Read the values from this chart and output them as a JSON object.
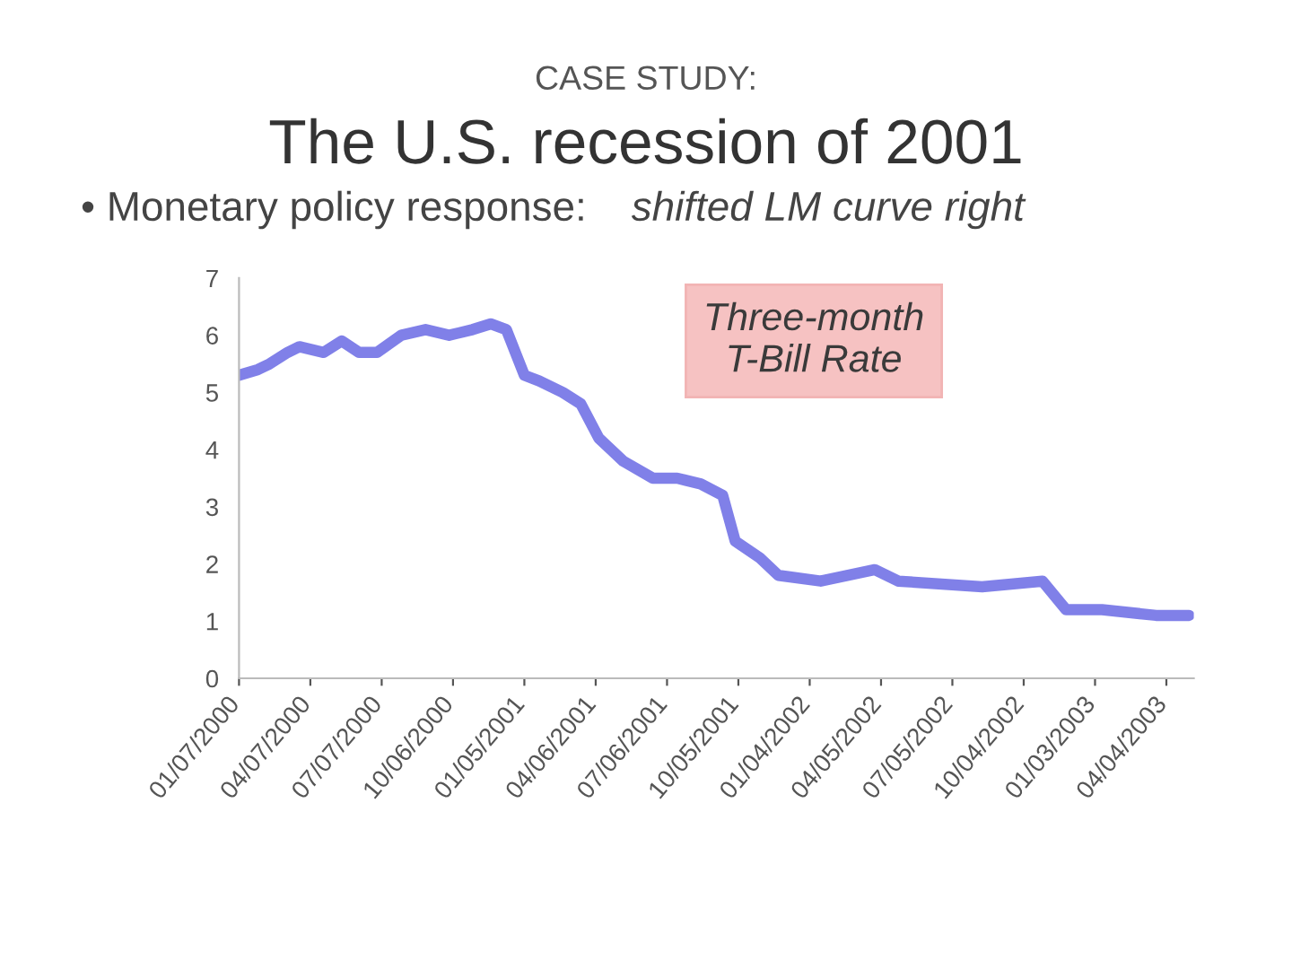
{
  "chart_data": {
    "type": "line",
    "subtitle": "CASE STUDY:",
    "title": "The U.S. recession of 2001",
    "annotations": [
      "• Monetary policy response:",
      "shifted LM curve right",
      "Three-month\nT-Bill Rate"
    ],
    "x": [
      "2000-01-07",
      "2000-01-31",
      "2000-02-15",
      "2000-03-09",
      "2000-03-24",
      "2000-04-24",
      "2000-05-17",
      "2000-06-08",
      "2000-07-01",
      "2000-08-01",
      "2000-09-01",
      "2000-10-01",
      "2000-10-31",
      "2000-11-23",
      "2000-12-13",
      "2001-01-05",
      "2001-01-24",
      "2001-02-23",
      "2001-03-18",
      "2001-04-10",
      "2001-05-11",
      "2001-06-18",
      "2001-07-19",
      "2001-08-18",
      "2001-09-15",
      "2001-10-01",
      "2001-11-02",
      "2001-11-25",
      "2002-01-18",
      "2002-03-28",
      "2002-04-27",
      "2002-08-12",
      "2002-10-28",
      "2002-11-27",
      "2003-01-12",
      "2003-03-22",
      "2003-05-03"
    ],
    "series": [
      {
        "color": "#7272e6",
        "values": [
          5.3,
          5.4,
          5.5,
          5.7,
          5.8,
          5.7,
          5.9,
          5.7,
          5.7,
          6.0,
          6.1,
          6.0,
          6.1,
          6.2,
          6.1,
          5.3,
          5.2,
          5.0,
          4.8,
          4.2,
          3.8,
          3.5,
          3.5,
          3.4,
          3.2,
          2.4,
          2.1,
          1.8,
          1.7,
          1.9,
          1.7,
          1.6,
          1.7,
          1.2,
          1.2,
          1.1,
          1.1
        ]
      }
    ],
    "line_style": "solid",
    "xlim": [
      "2000-01-07",
      "2003-05-09"
    ],
    "xticks": [
      {
        "value": "2000-01-07",
        "label": "01/07/2000"
      },
      {
        "value": "2000-04-07",
        "label": "04/07/2000"
      },
      {
        "value": "2000-07-07",
        "label": "07/07/2000"
      },
      {
        "value": "2000-10-06",
        "label": "10/06/2000"
      },
      {
        "value": "2001-01-05",
        "label": "01/05/2001"
      },
      {
        "value": "2001-04-06",
        "label": "04/06/2001"
      },
      {
        "value": "2001-07-06",
        "label": "07/06/2001"
      },
      {
        "value": "2001-10-05",
        "label": "10/05/2001"
      },
      {
        "value": "2002-01-04",
        "label": "01/04/2002"
      },
      {
        "value": "2002-04-05",
        "label": "04/05/2002"
      },
      {
        "value": "2002-07-05",
        "label": "07/05/2002"
      },
      {
        "value": "2002-10-04",
        "label": "10/04/2002"
      },
      {
        "value": "2003-01-03",
        "label": "01/03/2003"
      },
      {
        "value": "2003-04-04",
        "label": "04/04/2003"
      }
    ],
    "ylim": [
      0,
      7
    ],
    "yticks": [
      0,
      1,
      2,
      3,
      4,
      5,
      6,
      7
    ]
  }
}
